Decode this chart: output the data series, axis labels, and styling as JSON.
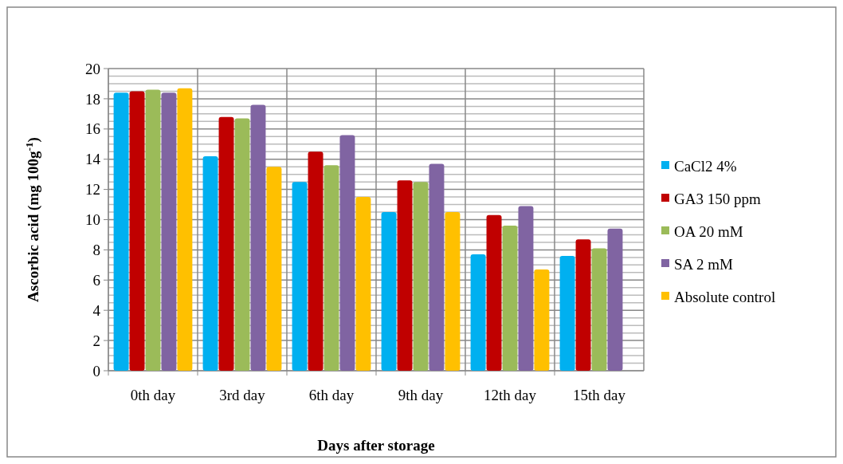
{
  "chart_data": {
    "type": "bar",
    "xlabel": "Days  after storage",
    "ylabel": "Ascorbic acid (mg 100g$^{-1}$)",
    "categories": [
      "0th day",
      "3rd day",
      "6th day",
      "9th day",
      "12th day",
      "15th day"
    ],
    "series": [
      {
        "name": "CaCl2 4%",
        "color": "#00b0f0",
        "values": [
          18.4,
          14.2,
          12.5,
          10.5,
          7.7,
          7.6
        ]
      },
      {
        "name": "GA3 150 ppm",
        "color": "#c00000",
        "values": [
          18.5,
          16.8,
          14.5,
          12.6,
          10.3,
          8.7
        ]
      },
      {
        "name": "OA 20 mM",
        "color": "#9bbb59",
        "values": [
          18.6,
          16.7,
          13.6,
          12.5,
          9.6,
          8.1
        ]
      },
      {
        "name": "SA 2 mM",
        "color": "#8064a2",
        "values": [
          18.4,
          17.6,
          15.6,
          13.7,
          10.9,
          9.4
        ]
      },
      {
        "name": "Absolute control",
        "color": "#ffc000",
        "values": [
          18.7,
          13.5,
          11.5,
          10.5,
          6.7,
          null
        ]
      }
    ],
    "ylim": [
      0,
      20
    ],
    "yticks": [
      0,
      2,
      4,
      6,
      8,
      10,
      12,
      14,
      16,
      18,
      20
    ],
    "grid": true,
    "legend": "right"
  }
}
